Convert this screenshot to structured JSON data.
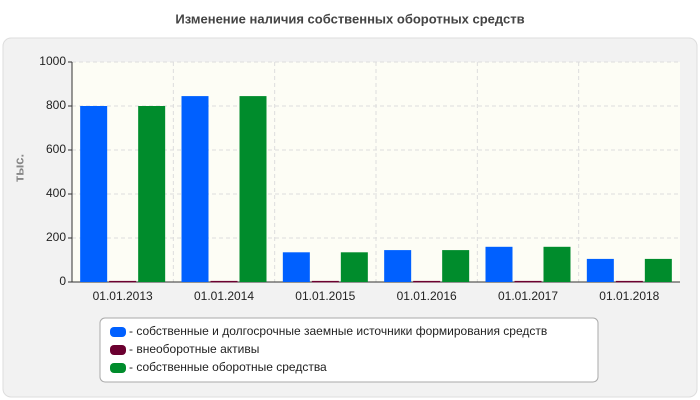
{
  "chart_data": {
    "type": "bar",
    "title": "Изменение наличия собственных оборотных средств",
    "y_label": "тыс.",
    "categories": [
      "01.01.2013",
      "01.01.2014",
      "01.01.2015",
      "01.01.2016",
      "01.01.2017",
      "01.01.2018"
    ],
    "series": [
      {
        "name": "- собственные и долгосрочные заемные источники формирования средств",
        "color": "#0060ff",
        "values": [
          800,
          845,
          135,
          145,
          160,
          105
        ]
      },
      {
        "name": "- внеоборотные активы",
        "color": "#6b0030",
        "values": [
          5,
          5,
          5,
          5,
          5,
          5
        ]
      },
      {
        "name": "- собственные оборотные средства",
        "color": "#008c2c",
        "values": [
          800,
          845,
          135,
          145,
          160,
          105
        ]
      }
    ],
    "ylim": [
      0,
      1000
    ],
    "yticks": [
      0,
      200,
      400,
      600,
      800,
      1000
    ],
    "grid": true
  }
}
